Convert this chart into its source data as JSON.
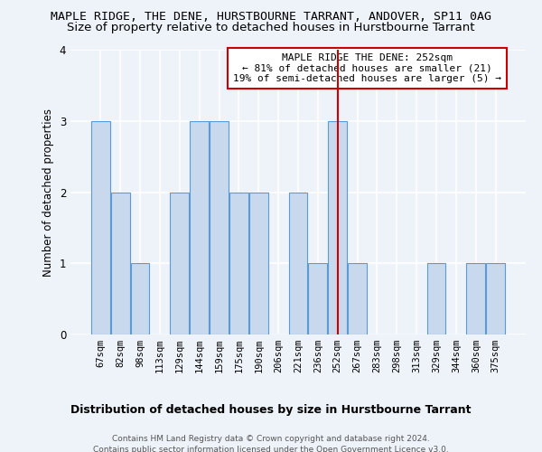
{
  "title": "MAPLE RIDGE, THE DENE, HURSTBOURNE TARRANT, ANDOVER, SP11 0AG",
  "subtitle": "Size of property relative to detached houses in Hurstbourne Tarrant",
  "xlabel": "Distribution of detached houses by size in Hurstbourne Tarrant",
  "ylabel": "Number of detached properties",
  "footer_line1": "Contains HM Land Registry data © Crown copyright and database right 2024.",
  "footer_line2": "Contains public sector information licensed under the Open Government Licence v3.0.",
  "categories": [
    "67sqm",
    "82sqm",
    "98sqm",
    "113sqm",
    "129sqm",
    "144sqm",
    "159sqm",
    "175sqm",
    "190sqm",
    "206sqm",
    "221sqm",
    "236sqm",
    "252sqm",
    "267sqm",
    "283sqm",
    "298sqm",
    "313sqm",
    "329sqm",
    "344sqm",
    "360sqm",
    "375sqm"
  ],
  "values": [
    3,
    2,
    1,
    0,
    2,
    3,
    3,
    2,
    2,
    0,
    2,
    1,
    3,
    1,
    0,
    0,
    0,
    1,
    0,
    1,
    1
  ],
  "bar_color": "#c8d9ee",
  "bar_edge_color": "#5b9bd5",
  "marker_index": 12,
  "marker_label": "MAPLE RIDGE THE DENE: 252sqm",
  "marker_line1": "← 81% of detached houses are smaller (21)",
  "marker_line2": "19% of semi-detached houses are larger (5) →",
  "marker_color": "#cc0000",
  "ylim": [
    0,
    4
  ],
  "yticks": [
    0,
    1,
    2,
    3,
    4
  ],
  "bg_color": "#eef2f9",
  "grid_color": "#ffffff",
  "title_fontsize": 9.5,
  "subtitle_fontsize": 9.5,
  "xlabel_fontsize": 9,
  "ylabel_fontsize": 8.5,
  "tick_fontsize": 7.5,
  "annotation_fontsize": 8
}
